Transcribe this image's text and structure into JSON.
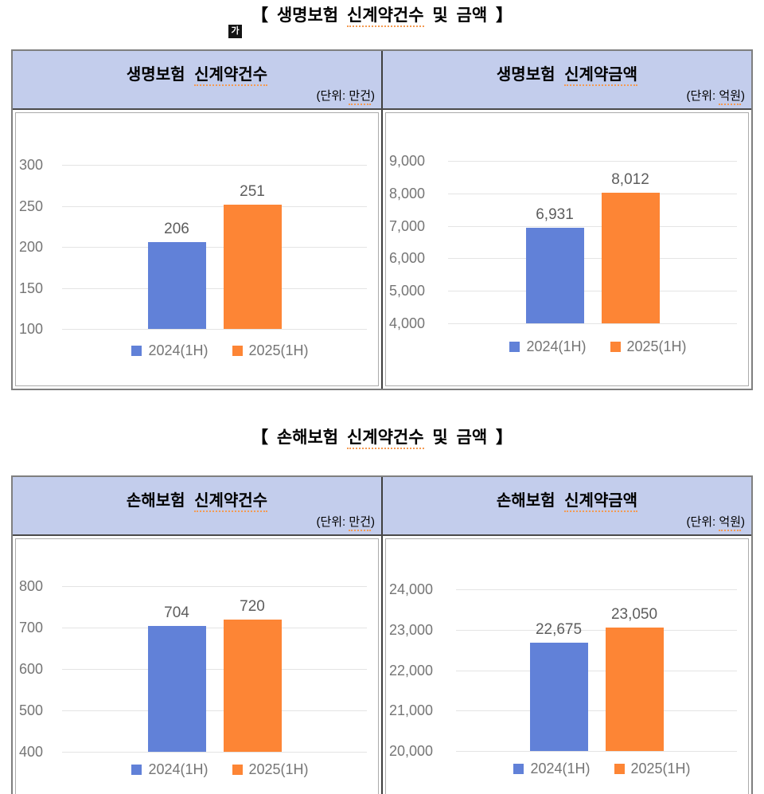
{
  "ime_badge": "가",
  "sections": [
    {
      "title_prefix": "【 생명보험 ",
      "title_underlined": "신계약건수",
      "title_suffix": " 및 금액 】",
      "panels": [
        {
          "header_prefix": "생명보험 ",
          "header_underlined": "신계약건수",
          "unit_prefix": "(단위: ",
          "unit_underlined": "만건",
          "unit_suffix": ")"
        },
        {
          "header_prefix": "생명보험 ",
          "header_underlined": "신계약금액",
          "unit_prefix": "(단위: ",
          "unit_underlined": "억원",
          "unit_suffix": ")"
        }
      ]
    },
    {
      "title_prefix": "【 손해보험 ",
      "title_underlined": "신계약건수",
      "title_suffix": " 및 금액 】",
      "panels": [
        {
          "header_prefix": "손해보험 ",
          "header_underlined": "신계약건수",
          "unit_prefix": "(단위: ",
          "unit_underlined": "만건",
          "unit_suffix": ")"
        },
        {
          "header_prefix": "손해보험 ",
          "header_underlined": "신계약금액",
          "unit_prefix": "(단위: ",
          "unit_underlined": "억원",
          "unit_suffix": ")"
        }
      ]
    }
  ],
  "chart_data": [
    {
      "type": "bar",
      "title": "생명보험 신계약건수",
      "unit": "만건",
      "categories": [
        "2024(1H)",
        "2025(1H)"
      ],
      "values": [
        206,
        251
      ],
      "value_labels": [
        "206",
        "251"
      ],
      "bar_colors": [
        "#6181d8",
        "#fd8535"
      ],
      "ylim": [
        100,
        300
      ],
      "yticks": [
        300,
        250,
        200,
        150,
        100
      ],
      "ytick_labels": [
        "300",
        "250",
        "200",
        "150",
        "100"
      ],
      "grid": true,
      "legend_position": "bottom"
    },
    {
      "type": "bar",
      "title": "생명보험 신계약금액",
      "unit": "억원",
      "categories": [
        "2024(1H)",
        "2025(1H)"
      ],
      "values": [
        6931,
        8012
      ],
      "value_labels": [
        "6,931",
        "8,012"
      ],
      "bar_colors": [
        "#6181d8",
        "#fd8535"
      ],
      "ylim": [
        4000,
        9000
      ],
      "yticks": [
        9000,
        8000,
        7000,
        6000,
        5000,
        4000
      ],
      "ytick_labels": [
        "9,000",
        "8,000",
        "7,000",
        "6,000",
        "5,000",
        "4,000"
      ],
      "grid": true,
      "legend_position": "bottom"
    },
    {
      "type": "bar",
      "title": "손해보험 신계약건수",
      "unit": "만건",
      "categories": [
        "2024(1H)",
        "2025(1H)"
      ],
      "values": [
        704,
        720
      ],
      "value_labels": [
        "704",
        "720"
      ],
      "bar_colors": [
        "#6181d8",
        "#fd8535"
      ],
      "ylim": [
        400,
        800
      ],
      "yticks": [
        800,
        700,
        600,
        500,
        400
      ],
      "ytick_labels": [
        "800",
        "700",
        "600",
        "500",
        "400"
      ],
      "grid": true,
      "legend_position": "bottom"
    },
    {
      "type": "bar",
      "title": "손해보험 신계약금액",
      "unit": "억원",
      "categories": [
        "2024(1H)",
        "2025(1H)"
      ],
      "values": [
        22675,
        23050
      ],
      "value_labels": [
        "22,675",
        "23,050"
      ],
      "bar_colors": [
        "#6181d8",
        "#fd8535"
      ],
      "ylim": [
        20000,
        24000
      ],
      "yticks": [
        24000,
        23000,
        22000,
        21000,
        20000
      ],
      "ytick_labels": [
        "24,000",
        "23,000",
        "22,000",
        "21,000",
        "20,000"
      ],
      "grid": true,
      "legend_position": "bottom"
    }
  ]
}
